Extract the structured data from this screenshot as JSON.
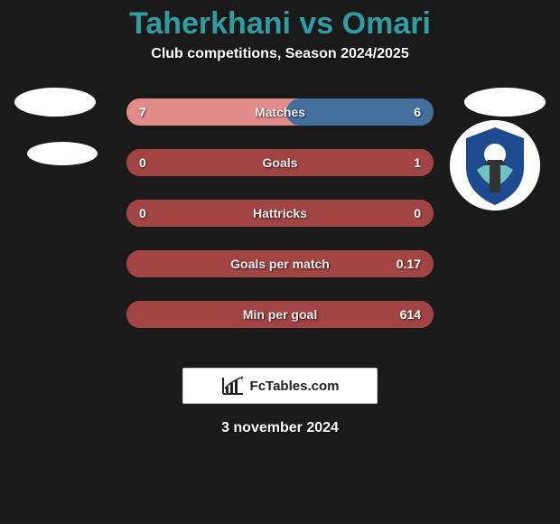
{
  "title": {
    "text": "Taherkhani vs Omari",
    "color": "#2e9ea3",
    "fontsize": 34
  },
  "subtitle": {
    "text": "Club competitions, Season 2024/2025",
    "fontsize": 16
  },
  "colors": {
    "bar_bg": "#e28b8b",
    "fill_1": "#436f9c",
    "fill_2": "#a24444",
    "background": "#1a1a1a"
  },
  "rows": [
    {
      "label": "Matches",
      "left_val": "7",
      "right_val": "6",
      "fill_side": "right",
      "fill_color": "#436f9c",
      "fill_pct": 48,
      "avatars": true
    },
    {
      "label": "Goals",
      "left_val": "0",
      "right_val": "1",
      "fill_side": "right",
      "fill_color": "#a24444",
      "fill_pct": 100,
      "avatar_left": true,
      "club_logo_right": true
    },
    {
      "label": "Hattricks",
      "left_val": "0",
      "right_val": "0",
      "fill_side": "right",
      "fill_color": "#a24444",
      "fill_pct": 100
    },
    {
      "label": "Goals per match",
      "left_val": "",
      "right_val": "0.17",
      "fill_side": "right",
      "fill_color": "#a24444",
      "fill_pct": 100
    },
    {
      "label": "Min per goal",
      "left_val": "",
      "right_val": "614",
      "fill_side": "right",
      "fill_color": "#a24444",
      "fill_pct": 100
    }
  ],
  "footer": {
    "brand": "FcTables.com",
    "date": "3 november 2024"
  },
  "club_logo": {
    "primary": "#1e4b8f",
    "accent": "#6fc2c2"
  }
}
